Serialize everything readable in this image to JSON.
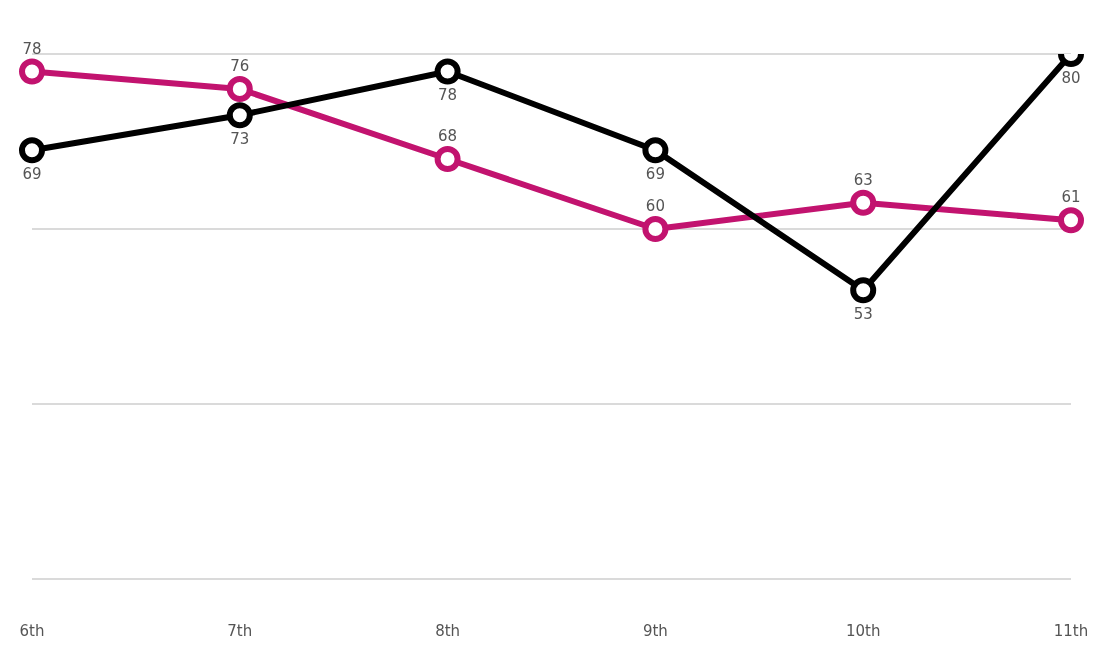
{
  "chart_data": {
    "type": "line",
    "categories": [
      "6th",
      "7th",
      "8th",
      "9th",
      "10th",
      "11th"
    ],
    "series": [
      {
        "color": "#c2136f",
        "values": [
          78,
          76,
          68,
          60,
          63,
          61
        ]
      },
      {
        "color": "#000000",
        "values": [
          69,
          73,
          78,
          69,
          53,
          80
        ]
      }
    ],
    "ylim": [
      20,
      80
    ],
    "yticks": [
      20,
      40,
      60,
      80
    ],
    "grid": "y",
    "tick_labels": "x",
    "marker": "circle",
    "line_style": "solid",
    "data_labels": true
  }
}
